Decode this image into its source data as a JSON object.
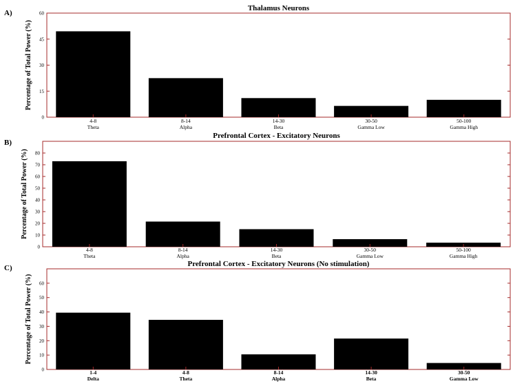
{
  "frame_color": "#a52a2a",
  "bar_color": "#000000",
  "chart_data": [
    {
      "panel_label": "A)",
      "type": "bar",
      "title": "Thalamus Neurons",
      "ylabel": "Percentage of Total Power (%)",
      "ylim": [
        0,
        60
      ],
      "yticks": [
        0,
        15,
        30,
        45,
        60
      ],
      "categories": [
        "4-8",
        "8-14",
        "14-30",
        "30-50",
        "50-100"
      ],
      "sublabels": [
        "Theta",
        "Alpha",
        "Beta",
        "Gamma Low",
        "Gamma High"
      ],
      "values": [
        49.5,
        22.5,
        11,
        6.5,
        10
      ],
      "grid": false
    },
    {
      "panel_label": "B)",
      "type": "bar",
      "title": "Prefrontal Cortex - Excitatory Neurons",
      "ylabel": "Percentage of Total Power (%)",
      "ylim": [
        0,
        90
      ],
      "yticks": [
        0,
        10,
        20,
        30,
        40,
        50,
        60,
        70,
        80
      ],
      "categories": [
        "4-8",
        "8-14",
        "14-30",
        "30-50",
        "50-100"
      ],
      "sublabels": [
        "Theta",
        "Alpha",
        "Beta",
        "Gamma Low",
        "Gamma High"
      ],
      "values": [
        73,
        21.5,
        15,
        6.5,
        3.5
      ],
      "grid": false
    },
    {
      "panel_label": "C)",
      "type": "bar",
      "title": "Prefrontal Cortex - Excitatory Neurons   (No stimulation)",
      "ylabel": "Percentage of Total Power (%)",
      "ylim": [
        0,
        70
      ],
      "yticks": [
        0,
        10,
        20,
        30,
        40,
        50,
        60
      ],
      "categories": [
        "1-4",
        "4-8",
        "8-14",
        "14-30",
        "30-50"
      ],
      "sublabels": [
        "Delta",
        "Theta",
        "Alpha",
        "Beta",
        "Gamma Low"
      ],
      "values": [
        39.5,
        34.5,
        10.5,
        21.5,
        4.5
      ],
      "grid": false
    }
  ]
}
